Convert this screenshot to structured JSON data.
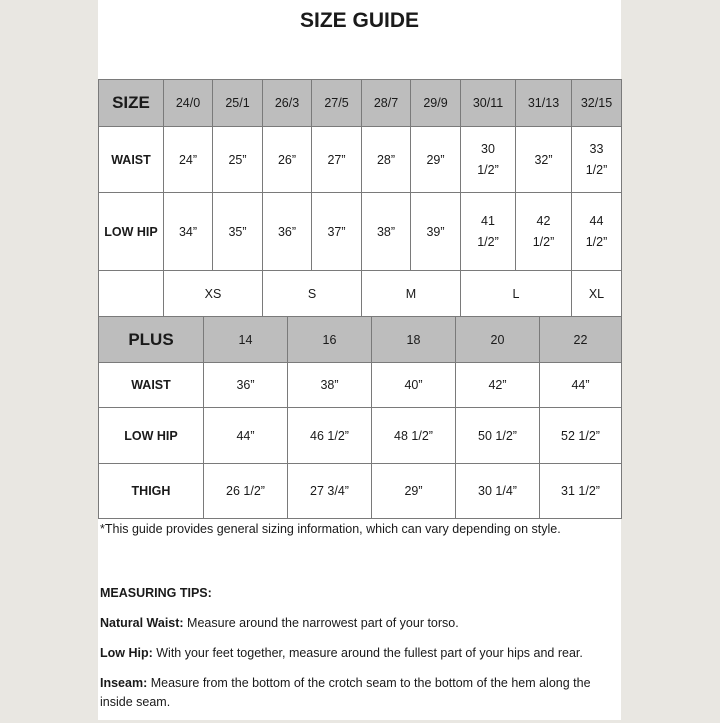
{
  "title": "SIZE GUIDE",
  "colors": {
    "header_bg": "#bdbdbd",
    "border": "#7a7a7a",
    "background": "#e9e7e2"
  },
  "size_table": {
    "header": "SIZE",
    "sizes": [
      "24/0",
      "25/1",
      "26/3",
      "27/5",
      "28/7",
      "29/9",
      "30/11",
      "31/13",
      "32/15"
    ],
    "rows": [
      {
        "label": "WAIST",
        "values": [
          "24”",
          "25”",
          "26”",
          "27”",
          "28”",
          "29”",
          "30 1/2”",
          "32”",
          "33 1/2”"
        ]
      },
      {
        "label": "LOW HIP",
        "values": [
          "34”",
          "35”",
          "36”",
          "37”",
          "38”",
          "39”",
          "41 1/2”",
          "42 1/2”",
          "44 1/2”"
        ]
      }
    ],
    "letters": [
      {
        "label": "XS",
        "span": 2
      },
      {
        "label": "S",
        "span": 2
      },
      {
        "label": "M",
        "span": 2
      },
      {
        "label": "L",
        "span": 2
      },
      {
        "label": "XL",
        "span": 1
      }
    ]
  },
  "plus_table": {
    "header": "PLUS",
    "sizes": [
      "14",
      "16",
      "18",
      "20",
      "22"
    ],
    "rows": [
      {
        "label": "WAIST",
        "values": [
          "36”",
          "38”",
          "40”",
          "42”",
          "44”"
        ]
      },
      {
        "label": "LOW HIP",
        "values": [
          "44”",
          "46 1/2”",
          "48 1/2”",
          "50 1/2”",
          "52 1/2”"
        ]
      },
      {
        "label": "THIGH",
        "values": [
          "26 1/2”",
          "27 3/4”",
          "29”",
          "30 1/4”",
          "31 1/2”"
        ]
      }
    ]
  },
  "note": "*This guide provides general sizing information, which can vary depending on style.",
  "tips": {
    "heading": "MEASURING TIPS:",
    "items": [
      {
        "term": "Natural Waist:",
        "text": " Measure around the narrowest part of your torso."
      },
      {
        "term": "Low Hip:",
        "text": " With your feet together, measure around the fullest part of your hips and rear."
      },
      {
        "term": "Inseam:",
        "text": " Measure from the bottom of the crotch seam to the bottom of the hem along the inside seam."
      }
    ]
  }
}
